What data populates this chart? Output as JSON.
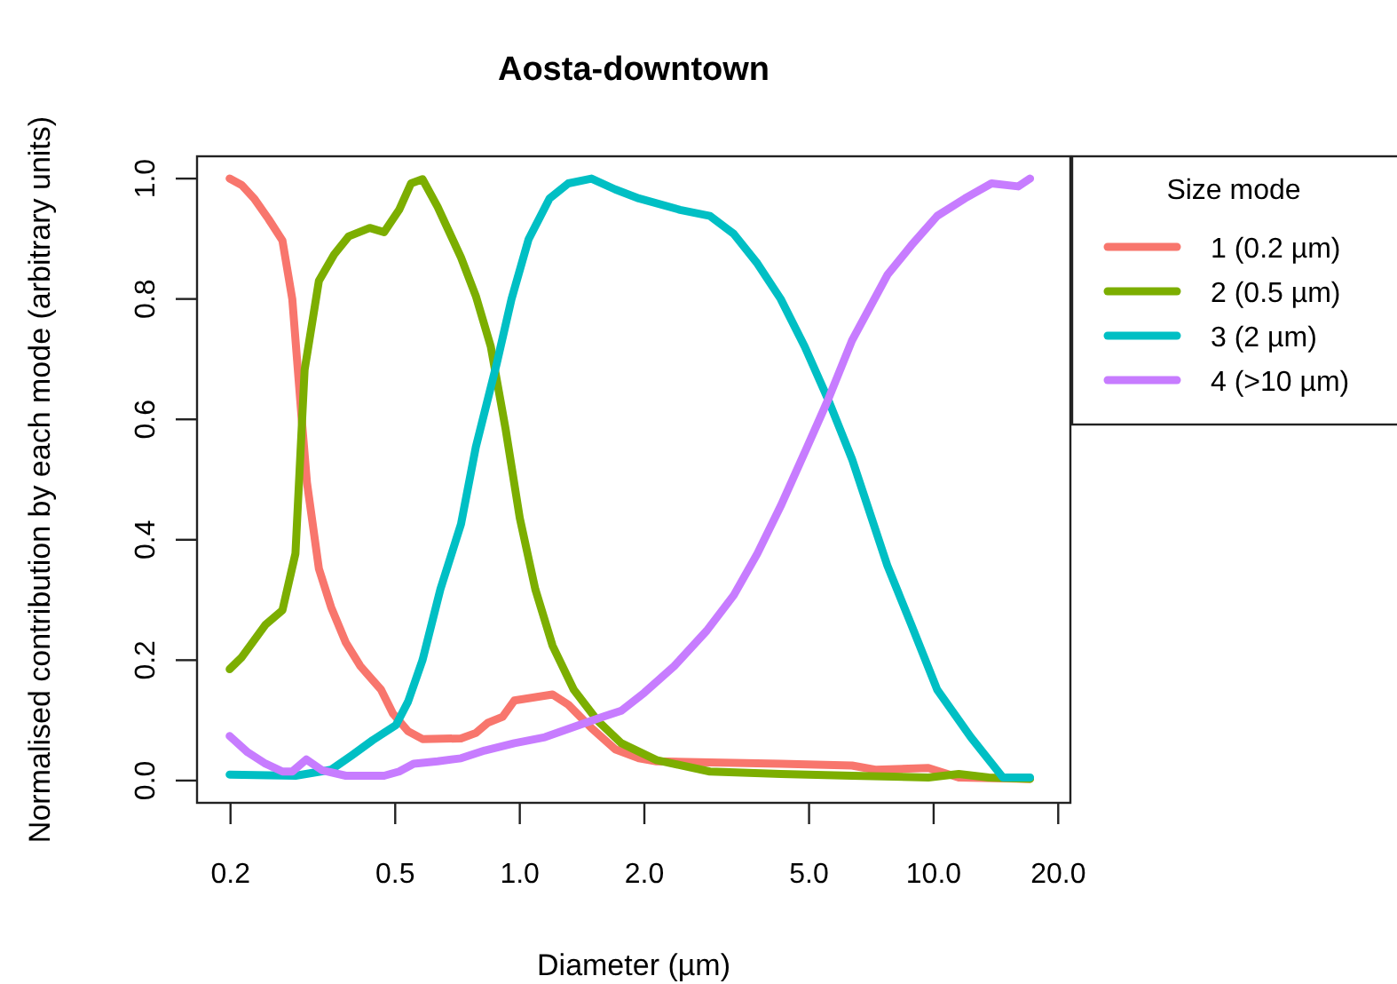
{
  "chart_data": {
    "type": "line",
    "title": "Aosta-downtown",
    "xlabel": "Diameter (µm)",
    "ylabel": "Normalised contribution by each mode (arbitrary units)",
    "legend_title": "Size mode",
    "legend": "right",
    "log": "x",
    "grid": false,
    "marker": "none",
    "line_style": "solid",
    "xlim": [
      0.166,
      21.4
    ],
    "xticks": [
      {
        "value": 0.2,
        "label": "0.2"
      },
      {
        "value": 0.5,
        "label": "0.5"
      },
      {
        "value": 1,
        "label": "1.0"
      },
      {
        "value": 2,
        "label": "2.0"
      },
      {
        "value": 5,
        "label": "5.0"
      },
      {
        "value": 10,
        "label": "10.0"
      },
      {
        "value": 20,
        "label": "20.0"
      }
    ],
    "ylim": [
      -0.037,
      1.037
    ],
    "yticks": [
      {
        "value": 0,
        "label": "0.0"
      },
      {
        "value": 0.2,
        "label": "0.2"
      },
      {
        "value": 0.4,
        "label": "0.4"
      },
      {
        "value": 0.6,
        "label": "0.6"
      },
      {
        "value": 0.8,
        "label": "0.8"
      },
      {
        "value": 1,
        "label": "1.0"
      }
    ],
    "series": [
      {
        "name": "1 (0.2 µm)",
        "color": "#f8766d",
        "x": [
          0.199,
          0.213,
          0.228,
          0.247,
          0.267,
          0.282,
          0.297,
          0.306,
          0.327,
          0.35,
          0.38,
          0.412,
          0.462,
          0.494,
          0.537,
          0.582,
          0.721,
          0.783,
          0.837,
          0.909,
          0.97,
          1.2,
          1.31,
          1.49,
          1.7,
          1.94,
          2.14,
          2.88,
          4.27,
          6.35,
          7.23,
          9.71,
          11.5,
          17.1
        ],
        "values": [
          1.0,
          0.989,
          0.967,
          0.933,
          0.897,
          0.8,
          0.603,
          0.495,
          0.352,
          0.288,
          0.229,
          0.19,
          0.151,
          0.111,
          0.082,
          0.069,
          0.07,
          0.079,
          0.096,
          0.106,
          0.133,
          0.143,
          0.126,
          0.087,
          0.052,
          0.037,
          0.032,
          0.03,
          0.028,
          0.025,
          0.018,
          0.021,
          0.005,
          0.003
        ]
      },
      {
        "name": "2 (0.5 µm)",
        "color": "#7cae00",
        "x": [
          0.199,
          0.213,
          0.243,
          0.267,
          0.287,
          0.302,
          0.327,
          0.356,
          0.386,
          0.434,
          0.47,
          0.511,
          0.546,
          0.582,
          0.633,
          0.721,
          0.783,
          0.851,
          0.924,
          1.0,
          1.09,
          1.2,
          1.35,
          1.54,
          1.76,
          2.14,
          2.88,
          4.27,
          6.35,
          9.71,
          11.5,
          13.6,
          17.1
        ],
        "values": [
          0.185,
          0.205,
          0.259,
          0.283,
          0.377,
          0.682,
          0.83,
          0.874,
          0.904,
          0.918,
          0.911,
          0.948,
          0.992,
          0.999,
          0.953,
          0.869,
          0.805,
          0.721,
          0.584,
          0.436,
          0.318,
          0.224,
          0.151,
          0.1,
          0.062,
          0.034,
          0.015,
          0.011,
          0.008,
          0.005,
          0.011,
          0.005,
          0.003
        ]
      },
      {
        "name": "3 (2 µm)",
        "color": "#00bfc4",
        "x": [
          0.199,
          0.287,
          0.35,
          0.393,
          0.441,
          0.502,
          0.537,
          0.582,
          0.643,
          0.721,
          0.783,
          0.879,
          0.955,
          1.05,
          1.18,
          1.31,
          1.49,
          1.7,
          1.94,
          2.44,
          2.88,
          3.29,
          3.75,
          4.27,
          4.88,
          5.56,
          6.35,
          7.73,
          8.83,
          10.2,
          12.3,
          14.7,
          17.1
        ],
        "values": [
          0.01,
          0.008,
          0.018,
          0.042,
          0.067,
          0.092,
          0.131,
          0.2,
          0.318,
          0.426,
          0.554,
          0.692,
          0.8,
          0.899,
          0.967,
          0.992,
          1.0,
          0.982,
          0.967,
          0.948,
          0.938,
          0.908,
          0.859,
          0.8,
          0.721,
          0.633,
          0.534,
          0.357,
          0.259,
          0.151,
          0.072,
          0.005,
          0.005
        ]
      },
      {
        "name": "4 (>10 µm)",
        "color": "#c77cff",
        "x": [
          0.199,
          0.22,
          0.243,
          0.267,
          0.282,
          0.305,
          0.333,
          0.38,
          0.47,
          0.511,
          0.554,
          0.633,
          0.721,
          0.823,
          0.97,
          1.15,
          1.39,
          1.59,
          1.76,
          2.0,
          2.36,
          2.83,
          3.29,
          3.75,
          4.27,
          4.88,
          5.56,
          6.35,
          7.73,
          8.83,
          10.2,
          11.9,
          13.8,
          16.0,
          17.1
        ],
        "values": [
          0.074,
          0.047,
          0.028,
          0.015,
          0.015,
          0.035,
          0.017,
          0.008,
          0.008,
          0.015,
          0.028,
          0.032,
          0.037,
          0.05,
          0.062,
          0.072,
          0.092,
          0.106,
          0.116,
          0.146,
          0.19,
          0.249,
          0.308,
          0.377,
          0.456,
          0.545,
          0.633,
          0.731,
          0.84,
          0.889,
          0.938,
          0.967,
          0.992,
          0.987,
          1.0
        ]
      }
    ]
  }
}
